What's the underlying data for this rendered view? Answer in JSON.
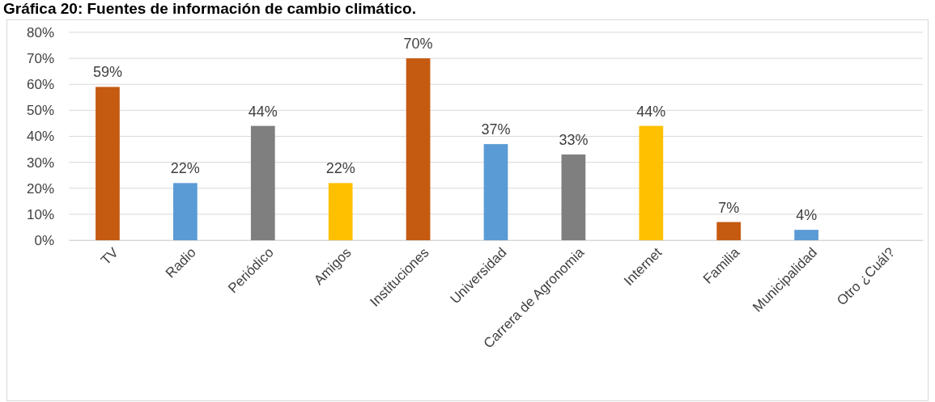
{
  "chart_data": {
    "type": "bar",
    "title": "Gráfica 20: Fuentes de información de cambio climático.",
    "categories": [
      "TV",
      "Radio",
      "Periódico",
      "Amigos",
      "Instituciones",
      "Universidad",
      "Carrera de Agronomia",
      "Internet",
      "Familia",
      "Municipalidad",
      "Otro ¿Cuál?"
    ],
    "values": [
      59,
      22,
      44,
      22,
      70,
      37,
      33,
      44,
      7,
      4,
      null
    ],
    "value_labels": [
      "59%",
      "22%",
      "44%",
      "22%",
      "70%",
      "37%",
      "33%",
      "44%",
      "7%",
      "4%",
      null
    ],
    "colors": [
      "#c55a11",
      "#5b9bd5",
      "#7f7f7f",
      "#ffc000",
      "#c55a11",
      "#5b9bd5",
      "#7f7f7f",
      "#ffc000",
      "#c55a11",
      "#5b9bd5",
      null
    ],
    "ylim": [
      0,
      80
    ],
    "yticks": [
      {
        "value": 0,
        "label": "0%"
      },
      {
        "value": 10,
        "label": "10%"
      },
      {
        "value": 20,
        "label": "20%"
      },
      {
        "value": 30,
        "label": "30%"
      },
      {
        "value": 40,
        "label": "40%"
      },
      {
        "value": 50,
        "label": "50%"
      },
      {
        "value": 60,
        "label": "60%"
      },
      {
        "value": 70,
        "label": "70%"
      },
      {
        "value": 80,
        "label": "80%"
      }
    ],
    "grid": "y"
  }
}
